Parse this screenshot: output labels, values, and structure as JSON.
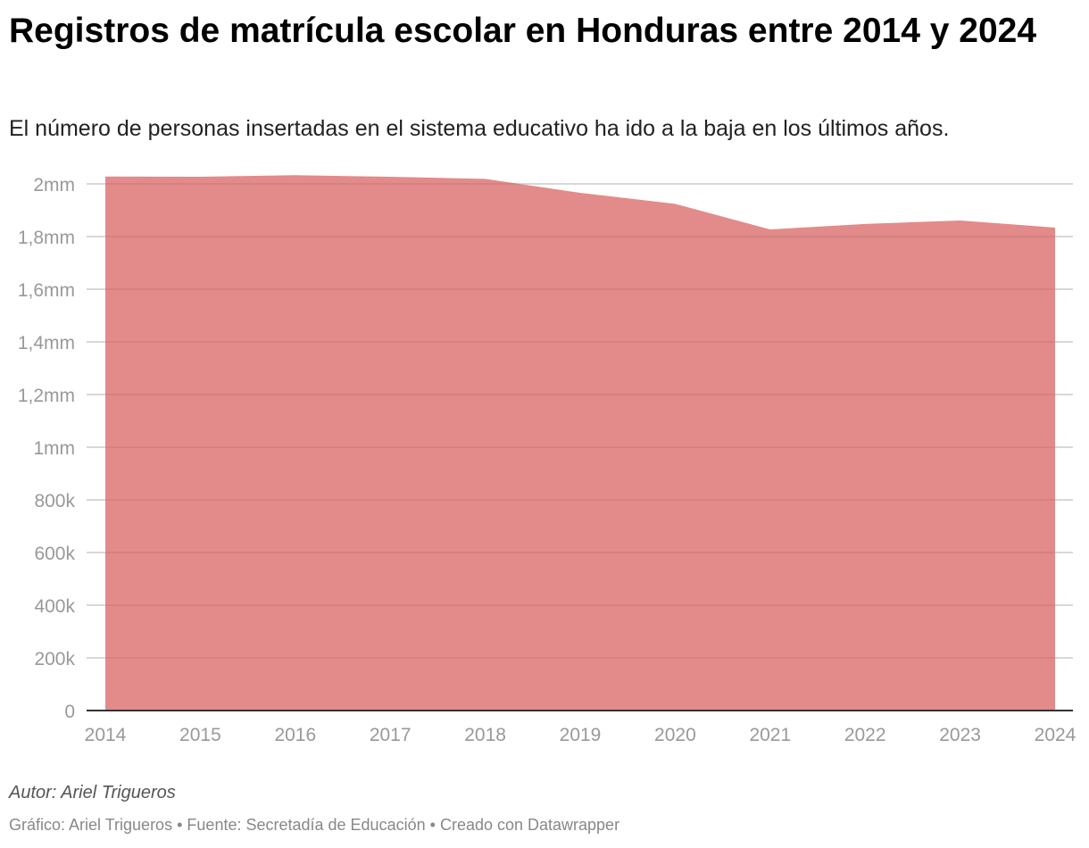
{
  "title": "Registros de matrícula escolar en Honduras entre 2014 y 2024",
  "subtitle": "El número de personas insertadas en el sistema educativo ha ido a la baja en los últimos años.",
  "author": "Autor: Ariel Trigueros",
  "footer": {
    "chart_by": "Gráfico: Ariel Trigueros",
    "separator": "•",
    "source": "Fuente: Secretadía de Educación",
    "created_with": "Creado con Datawrapper"
  },
  "colors": {
    "area": "#e28b8a",
    "grid": "#e6e6e6",
    "baseline": "#333333"
  },
  "chart_data": {
    "type": "area",
    "title": "Registros de matrícula escolar en Honduras entre 2014 y 2024",
    "xlabel": "",
    "ylabel": "",
    "x": [
      "2014",
      "2015",
      "2016",
      "2017",
      "2018",
      "2019",
      "2020",
      "2021",
      "2022",
      "2023",
      "2024"
    ],
    "values": [
      2028000,
      2027000,
      2033000,
      2027000,
      2019000,
      1966000,
      1924000,
      1827000,
      1848000,
      1861000,
      1834000
    ],
    "ylim": [
      0,
      2000000
    ],
    "yticks": [
      0,
      200000,
      400000,
      600000,
      800000,
      1000000,
      1200000,
      1400000,
      1600000,
      1800000,
      2000000
    ],
    "ytick_labels": [
      "0",
      "200k",
      "400k",
      "600k",
      "800k",
      "1mm",
      "1,2mm",
      "1,4mm",
      "1,6mm",
      "1,8mm",
      "2mm"
    ],
    "grid": true,
    "legend": "none"
  }
}
